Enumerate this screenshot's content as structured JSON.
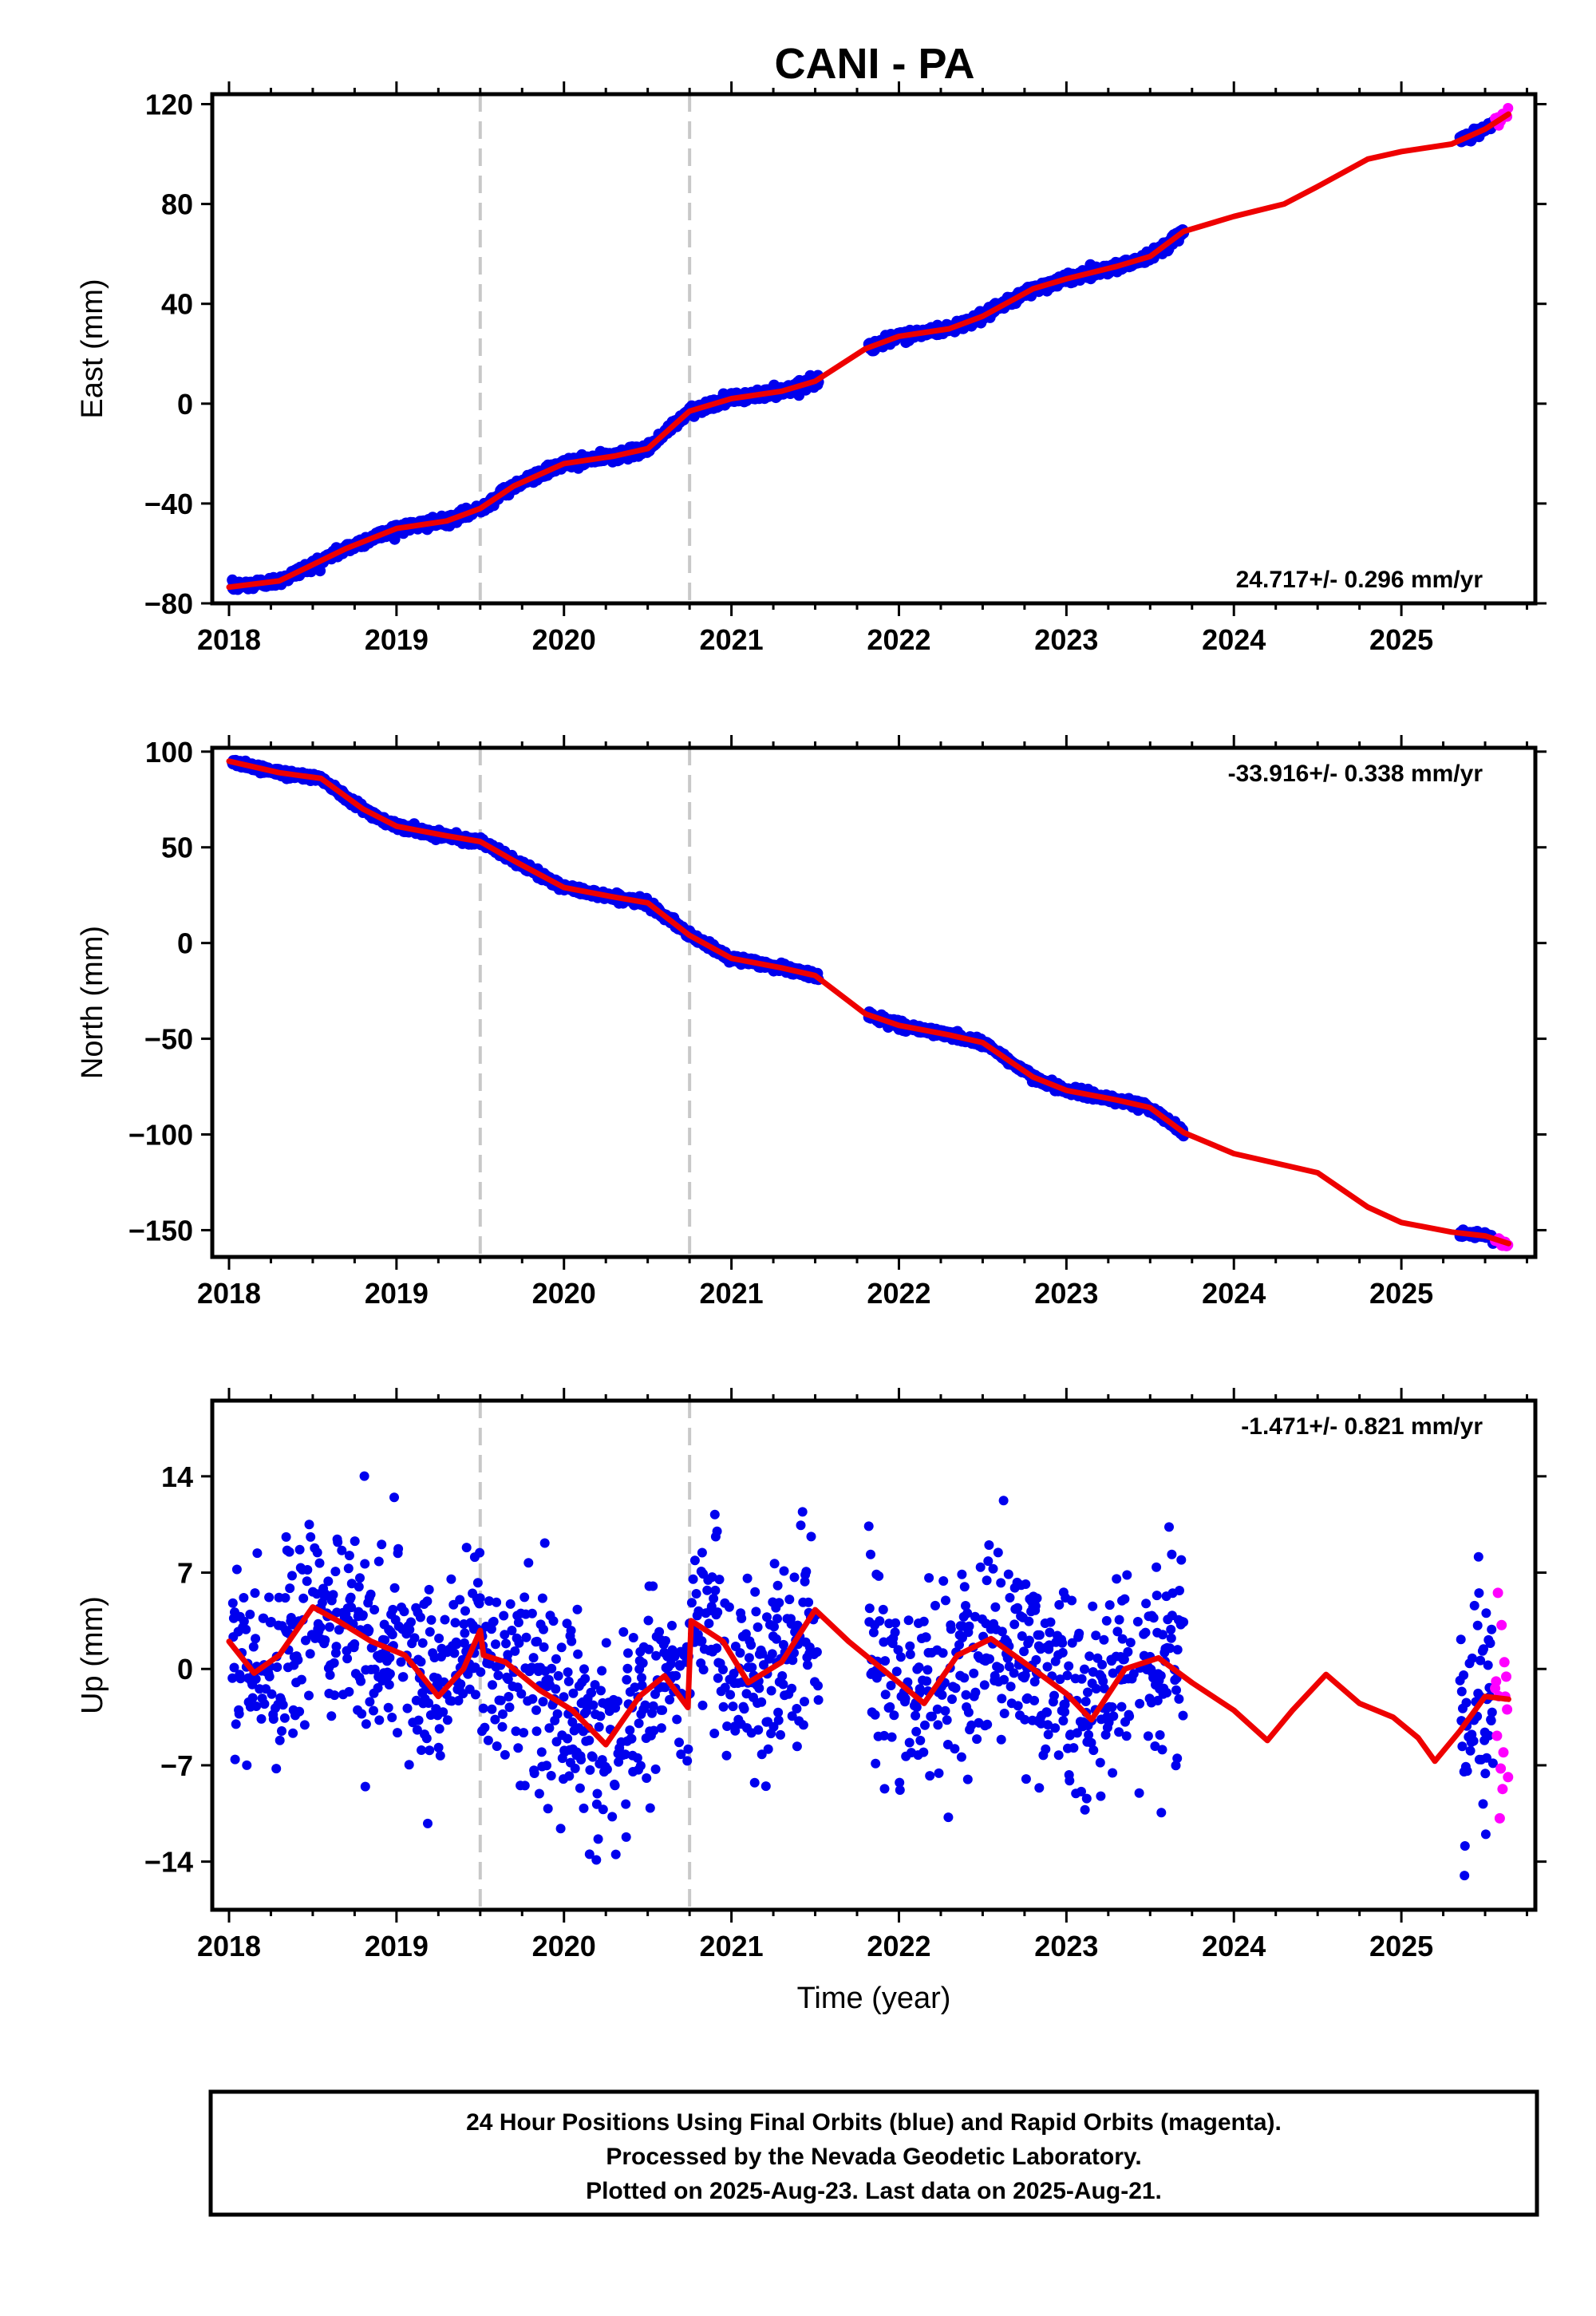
{
  "title": "CANI - PA",
  "colors": {
    "final": "#0000ee",
    "rapid": "#ff00ff",
    "model": "#ee0000",
    "event": "#c8c8c8"
  },
  "event_lines": [
    2019.5,
    2020.75
  ],
  "chart_data": [
    {
      "type": "scatter",
      "component": "east",
      "ylabel": "East (mm)",
      "rate_text": "24.717+/- 0.296 mm/yr",
      "xlim": [
        2017.9,
        2025.8
      ],
      "ylim": [
        -80,
        124
      ],
      "yticks": [
        -80,
        -40,
        0,
        40,
        80,
        120
      ],
      "xticks": [
        2018,
        2019,
        2020,
        2021,
        2022,
        2023,
        2024,
        2025
      ],
      "final_segments": [
        [
          2018.02,
          2021.52
        ],
        [
          2021.82,
          2023.7
        ],
        [
          2025.35,
          2025.55
        ]
      ],
      "rapid_range": [
        2025.56,
        2025.64
      ],
      "noise_mm": 1.6,
      "model": [
        [
          2018.0,
          -73.5
        ],
        [
          2018.3,
          -71
        ],
        [
          2018.7,
          -58
        ],
        [
          2019.0,
          -50
        ],
        [
          2019.3,
          -47
        ],
        [
          2019.5,
          -42
        ],
        [
          2019.7,
          -33
        ],
        [
          2020.0,
          -24
        ],
        [
          2020.3,
          -21
        ],
        [
          2020.5,
          -18
        ],
        [
          2020.75,
          -3
        ],
        [
          2021.0,
          2
        ],
        [
          2021.3,
          5
        ],
        [
          2021.5,
          9
        ],
        [
          2021.8,
          22
        ],
        [
          2022.0,
          27
        ],
        [
          2022.3,
          30
        ],
        [
          2022.5,
          35
        ],
        [
          2022.8,
          46
        ],
        [
          2023.0,
          50
        ],
        [
          2023.3,
          55
        ],
        [
          2023.5,
          59
        ],
        [
          2023.7,
          69
        ],
        [
          2024.0,
          75
        ],
        [
          2024.3,
          80
        ],
        [
          2024.5,
          87
        ],
        [
          2024.8,
          98
        ],
        [
          2025.0,
          101
        ],
        [
          2025.3,
          104
        ],
        [
          2025.5,
          110
        ],
        [
          2025.64,
          116
        ]
      ]
    },
    {
      "type": "scatter",
      "component": "north",
      "ylabel": "North (mm)",
      "rate_text": "-33.916+/- 0.338 mm/yr",
      "xlim": [
        2017.9,
        2025.8
      ],
      "ylim": [
        -164,
        102
      ],
      "yticks": [
        -150,
        -100,
        -50,
        0,
        50,
        100
      ],
      "xticks": [
        2018,
        2019,
        2020,
        2021,
        2022,
        2023,
        2024,
        2025
      ],
      "final_segments": [
        [
          2018.02,
          2021.52
        ],
        [
          2021.82,
          2023.7
        ],
        [
          2025.35,
          2025.55
        ]
      ],
      "rapid_range": [
        2025.56,
        2025.64
      ],
      "noise_mm": 1.6,
      "model": [
        [
          2018.0,
          95
        ],
        [
          2018.3,
          89
        ],
        [
          2018.55,
          86
        ],
        [
          2018.8,
          70
        ],
        [
          2019.0,
          61
        ],
        [
          2019.3,
          56
        ],
        [
          2019.5,
          53
        ],
        [
          2019.7,
          43
        ],
        [
          2020.0,
          29
        ],
        [
          2020.3,
          24
        ],
        [
          2020.5,
          21
        ],
        [
          2020.75,
          4
        ],
        [
          2021.0,
          -8
        ],
        [
          2021.3,
          -13
        ],
        [
          2021.5,
          -17
        ],
        [
          2021.8,
          -37
        ],
        [
          2022.0,
          -43
        ],
        [
          2022.3,
          -48
        ],
        [
          2022.5,
          -52
        ],
        [
          2022.8,
          -70
        ],
        [
          2023.0,
          -77
        ],
        [
          2023.3,
          -82
        ],
        [
          2023.5,
          -86
        ],
        [
          2023.7,
          -99
        ],
        [
          2024.0,
          -110
        ],
        [
          2024.3,
          -116
        ],
        [
          2024.5,
          -120
        ],
        [
          2024.8,
          -138
        ],
        [
          2025.0,
          -146
        ],
        [
          2025.3,
          -151
        ],
        [
          2025.5,
          -153
        ],
        [
          2025.64,
          -157
        ]
      ]
    },
    {
      "type": "scatter",
      "component": "up",
      "ylabel": "Up (mm)",
      "xlabel": "Time (year)",
      "rate_text": "-1.471+/- 0.821 mm/yr",
      "xlim": [
        2017.9,
        2025.8
      ],
      "ylim": [
        -17.5,
        19.5
      ],
      "yticks": [
        -14,
        -7,
        0,
        7,
        14
      ],
      "xticks": [
        2018,
        2019,
        2020,
        2021,
        2022,
        2023,
        2024,
        2025
      ],
      "final_segments": [
        [
          2018.02,
          2021.52
        ],
        [
          2021.82,
          2023.7
        ],
        [
          2025.35,
          2025.55
        ]
      ],
      "rapid_range": [
        2025.56,
        2025.64
      ],
      "noise_mm": 3.6,
      "model": [
        [
          2018.0,
          2
        ],
        [
          2018.15,
          -0.3
        ],
        [
          2018.3,
          1
        ],
        [
          2018.5,
          4.5
        ],
        [
          2018.65,
          3.5
        ],
        [
          2018.85,
          2
        ],
        [
          2019.05,
          1
        ],
        [
          2019.25,
          -2
        ],
        [
          2019.4,
          0
        ],
        [
          2019.5,
          2.8
        ],
        [
          2019.52,
          1
        ],
        [
          2019.65,
          0.5
        ],
        [
          2019.85,
          -1.5
        ],
        [
          2020.05,
          -3
        ],
        [
          2020.25,
          -5.5
        ],
        [
          2020.45,
          -2
        ],
        [
          2020.6,
          -0.5
        ],
        [
          2020.74,
          -2.8
        ],
        [
          2020.76,
          3.5
        ],
        [
          2020.95,
          2
        ],
        [
          2021.1,
          -1
        ],
        [
          2021.3,
          0.5
        ],
        [
          2021.5,
          4.3
        ],
        [
          2021.7,
          2
        ],
        [
          2021.9,
          0
        ],
        [
          2022.15,
          -2.5
        ],
        [
          2022.35,
          1
        ],
        [
          2022.55,
          2.2
        ],
        [
          2022.8,
          0
        ],
        [
          2023.0,
          -1.8
        ],
        [
          2023.15,
          -3.7
        ],
        [
          2023.35,
          0
        ],
        [
          2023.55,
          0.8
        ],
        [
          2023.75,
          -1
        ],
        [
          2024.0,
          -3
        ],
        [
          2024.2,
          -5.2
        ],
        [
          2024.35,
          -3
        ],
        [
          2024.55,
          -0.4
        ],
        [
          2024.75,
          -2.5
        ],
        [
          2024.95,
          -3.5
        ],
        [
          2025.1,
          -5
        ],
        [
          2025.2,
          -6.7
        ],
        [
          2025.35,
          -4.5
        ],
        [
          2025.5,
          -2
        ],
        [
          2025.64,
          -2.2
        ]
      ]
    }
  ],
  "footer": {
    "line1": "24 Hour Positions Using Final Orbits (blue) and Rapid Orbits (magenta).",
    "line2": "Processed by the Nevada Geodetic Laboratory.",
    "line3": "Plotted on 2025-Aug-23. Last data on 2025-Aug-21."
  }
}
